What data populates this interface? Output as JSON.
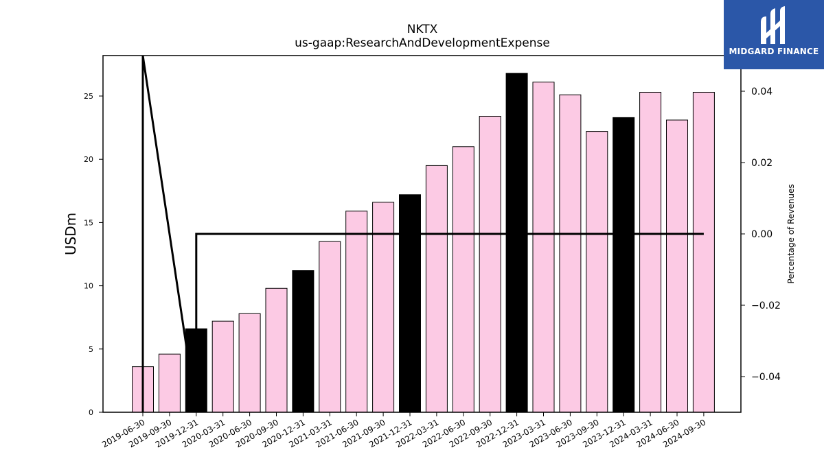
{
  "chart_data": {
    "type": "bar",
    "title": "NKTX",
    "subtitle": "us-gaap:ResearchAndDevelopmentExpense",
    "ylabel": "USDm",
    "y2label": "Percentage of Revenues",
    "ylim": [
      0,
      28.2
    ],
    "y2lim": [
      -0.05,
      0.05
    ],
    "y_ticks": [
      0,
      5,
      10,
      15,
      20,
      25
    ],
    "y2_ticks": [
      -0.04,
      -0.02,
      0.0,
      0.02,
      0.04
    ],
    "y2_tick_labels": [
      "−0.04",
      "−0.02",
      "0.00",
      "0.02",
      "0.04"
    ],
    "categories": [
      "2019-06-30",
      "2019-09-30",
      "2019-12-31",
      "2020-03-31",
      "2020-06-30",
      "2020-09-30",
      "2020-12-31",
      "2021-03-31",
      "2021-06-30",
      "2021-09-30",
      "2021-12-31",
      "2022-03-31",
      "2022-06-30",
      "2022-09-30",
      "2022-12-31",
      "2023-03-31",
      "2023-06-30",
      "2023-09-30",
      "2023-12-31",
      "2024-03-31",
      "2024-06-30",
      "2024-09-30"
    ],
    "values": [
      3.6,
      4.6,
      6.6,
      7.2,
      7.8,
      9.8,
      11.2,
      13.5,
      15.9,
      16.6,
      17.2,
      19.5,
      21.0,
      23.4,
      26.8,
      26.1,
      25.1,
      22.2,
      23.3,
      25.3,
      23.1,
      25.3
    ],
    "highlight": [
      false,
      false,
      true,
      false,
      false,
      false,
      true,
      false,
      false,
      false,
      true,
      false,
      false,
      false,
      true,
      false,
      false,
      false,
      true,
      false,
      false,
      false
    ],
    "series": [
      {
        "name": "",
        "axis": "y2",
        "type": "step",
        "points": [
          {
            "x": "2019-06-30",
            "y": -0.05
          },
          {
            "x": "2019-06-30",
            "y": 0.05
          },
          {
            "x": "2019-12-31",
            "y": -0.05
          },
          {
            "x": "2019-12-31",
            "y": 0.0
          },
          {
            "x": "2024-09-30",
            "y": 0.0
          }
        ]
      }
    ],
    "colors": {
      "bar": "#fccae4",
      "highlight_bar": "#000000",
      "line": "#000000"
    }
  },
  "logo": {
    "text": "MIDGARD FINANCE",
    "background": "#2b57a8"
  }
}
